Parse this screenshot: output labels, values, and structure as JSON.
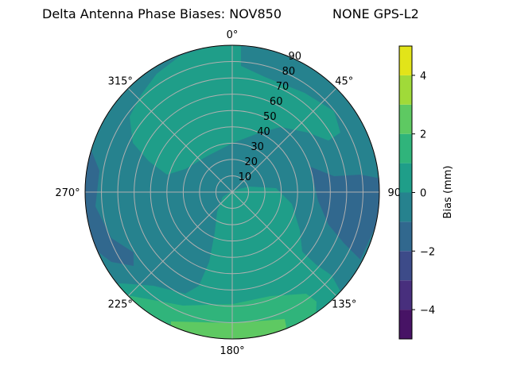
{
  "chart_data": {
    "type": "heatmap",
    "subtype": "polar-filled-contour",
    "title_left": "Delta Antenna Phase Biases: NOV850",
    "title_right": "NONE GPS-L2",
    "angular_ticks": [
      "0°",
      "45°",
      "90°",
      "135°",
      "180°",
      "225°",
      "270°",
      "315°"
    ],
    "radial_ticks": [
      "10",
      "20",
      "30",
      "40",
      "50",
      "60",
      "70",
      "80",
      "90"
    ],
    "radial_range": [
      0,
      90
    ],
    "grid": true,
    "colormap": "viridis",
    "levels": [
      -5,
      -4,
      -3,
      -2,
      -1,
      0,
      1,
      2,
      3,
      4,
      5
    ],
    "level_colors": [
      "#471365",
      "#482f7d",
      "#3d4b89",
      "#31688e",
      "#26828e",
      "#1f9e89",
      "#30b47b",
      "#5ec962",
      "#a0da39",
      "#e2e419"
    ],
    "colorbar": {
      "label": "Bias (mm)",
      "ticks": [
        "−4",
        "−2",
        "0",
        "2",
        "4"
      ],
      "tick_values": [
        -4,
        -2,
        0,
        2,
        4
      ],
      "range": [
        -5,
        5
      ]
    },
    "regions": [
      {
        "level_range": [
          -1,
          0
        ],
        "where": "background, most of the sky"
      },
      {
        "level_range": [
          0,
          1
        ],
        "where": "large area north/north-west 30–85°, and southern sector toward 180°"
      },
      {
        "level_range": [
          -2,
          -1
        ],
        "where": "east near 90° azimuth 60–90°, and west edge near 270°"
      },
      {
        "level_range": [
          1,
          2
        ],
        "where": "south horizon 160°–220°"
      },
      {
        "level_range": [
          2,
          3
        ],
        "where": "south horizon 170°–200° at 85–90°"
      }
    ]
  }
}
